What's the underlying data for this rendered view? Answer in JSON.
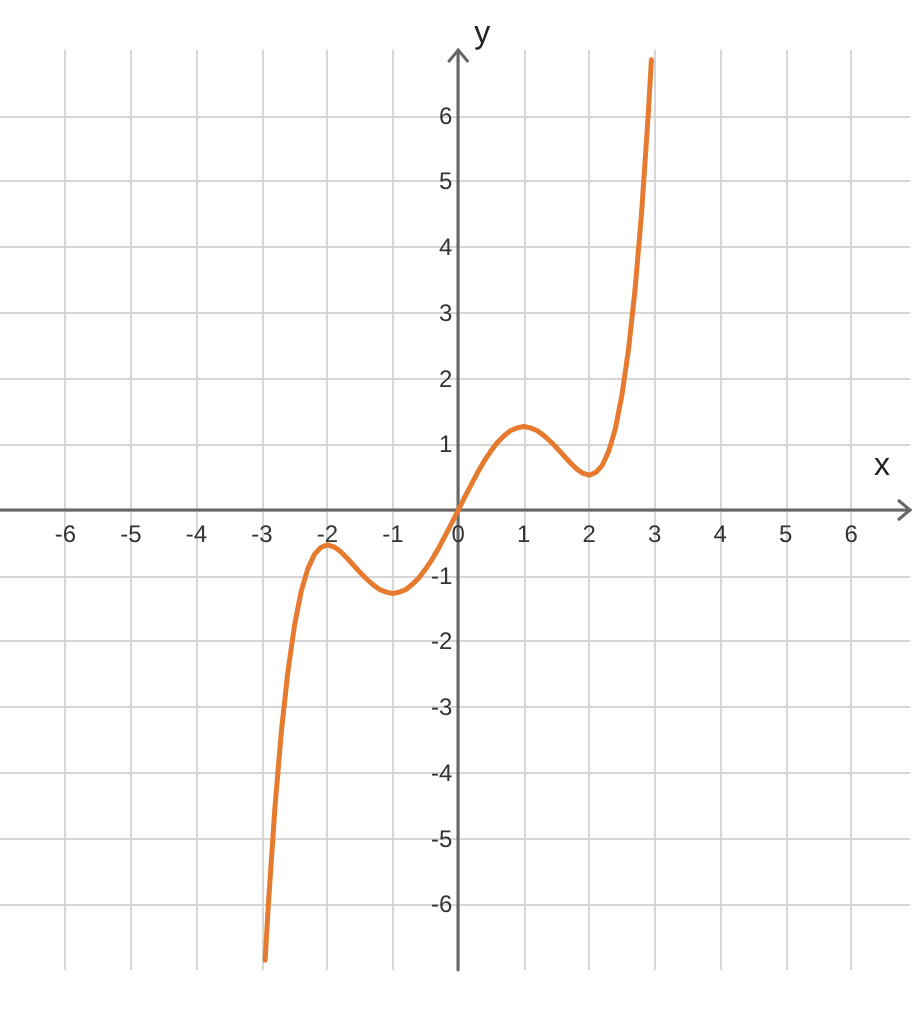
{
  "chart_data": {
    "type": "line",
    "xlabel": "x",
    "ylabel": "y",
    "x": [
      -2.95,
      -2.9,
      -2.8,
      -2.7,
      -2.6,
      -2.5,
      -2.4,
      -2.3,
      -2.2,
      -2.1,
      -2.0,
      -1.9,
      -1.8,
      -1.7,
      -1.6,
      -1.5,
      -1.4,
      -1.3,
      -1.2,
      -1.1,
      -1.0,
      -0.9,
      -0.8,
      -0.7,
      -0.6,
      -0.5,
      -0.4,
      -0.3,
      -0.2,
      -0.1,
      0,
      0.1,
      0.2,
      0.3,
      0.4,
      0.5,
      0.6,
      0.7,
      0.8,
      0.9,
      1.0,
      1.1,
      1.2,
      1.3,
      1.4,
      1.5,
      1.6,
      1.7,
      1.8,
      1.9,
      2.0,
      2.1,
      2.2,
      2.3,
      2.4,
      2.5,
      2.6,
      2.7,
      2.8,
      2.9,
      2.95
    ],
    "series": [
      {
        "color": "#e67a2e",
        "values": [
          -6.85,
          -5.99,
          -4.52,
          -3.35,
          -2.44,
          -1.75,
          -1.24,
          -0.9,
          -0.68,
          -0.57,
          -0.53,
          -0.56,
          -0.63,
          -0.73,
          -0.84,
          -0.95,
          -1.05,
          -1.14,
          -1.21,
          -1.25,
          -1.27,
          -1.25,
          -1.21,
          -1.13,
          -1.03,
          -0.9,
          -0.75,
          -0.58,
          -0.39,
          -0.2,
          0,
          0.2,
          0.39,
          0.58,
          0.75,
          0.9,
          1.03,
          1.13,
          1.21,
          1.25,
          1.27,
          1.25,
          1.21,
          1.14,
          1.05,
          0.95,
          0.84,
          0.73,
          0.63,
          0.56,
          0.53,
          0.57,
          0.68,
          0.9,
          1.24,
          1.75,
          2.44,
          3.35,
          4.52,
          5.99,
          6.85
        ]
      }
    ],
    "xlim": [
      -7,
      6.9
    ],
    "ylim": [
      -7,
      7
    ],
    "xticks": [
      -6,
      -5,
      -4,
      -3,
      -2,
      -1,
      0,
      1,
      2,
      3,
      4,
      5,
      6
    ],
    "yticks": [
      -6,
      -5,
      -4,
      -3,
      -2,
      -1,
      {
        "value": 0,
        "label": null
      },
      1,
      2,
      3,
      4,
      5,
      6
    ],
    "grid": true,
    "marker": "none",
    "line_style": "solid"
  }
}
